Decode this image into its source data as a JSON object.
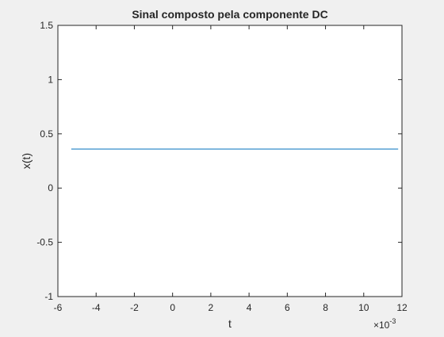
{
  "chart_data": {
    "type": "line",
    "title": "Sinal composto pela componente DC",
    "xlabel": "t",
    "ylabel": "x(t)",
    "x_exponent_label": {
      "base": "×10",
      "exponent": "-3"
    },
    "xlim": [
      -6,
      12
    ],
    "ylim": [
      -1,
      1.5
    ],
    "xticks": [
      "-6",
      "-4",
      "-2",
      "0",
      "2",
      "4",
      "6",
      "8",
      "10",
      "12"
    ],
    "yticks": [
      "-1",
      "-0.5",
      "0",
      "0.5",
      "1",
      "1.5"
    ],
    "grid": false,
    "series": [
      {
        "x": [
          -5.3,
          11.8
        ],
        "y": [
          0.36,
          0.36
        ],
        "color": "#0072bd"
      }
    ]
  },
  "colors": {
    "figure_bg": "#f0f0f0",
    "axes_bg": "#ffffff",
    "axis": "#262626",
    "line": "#0072bd"
  }
}
